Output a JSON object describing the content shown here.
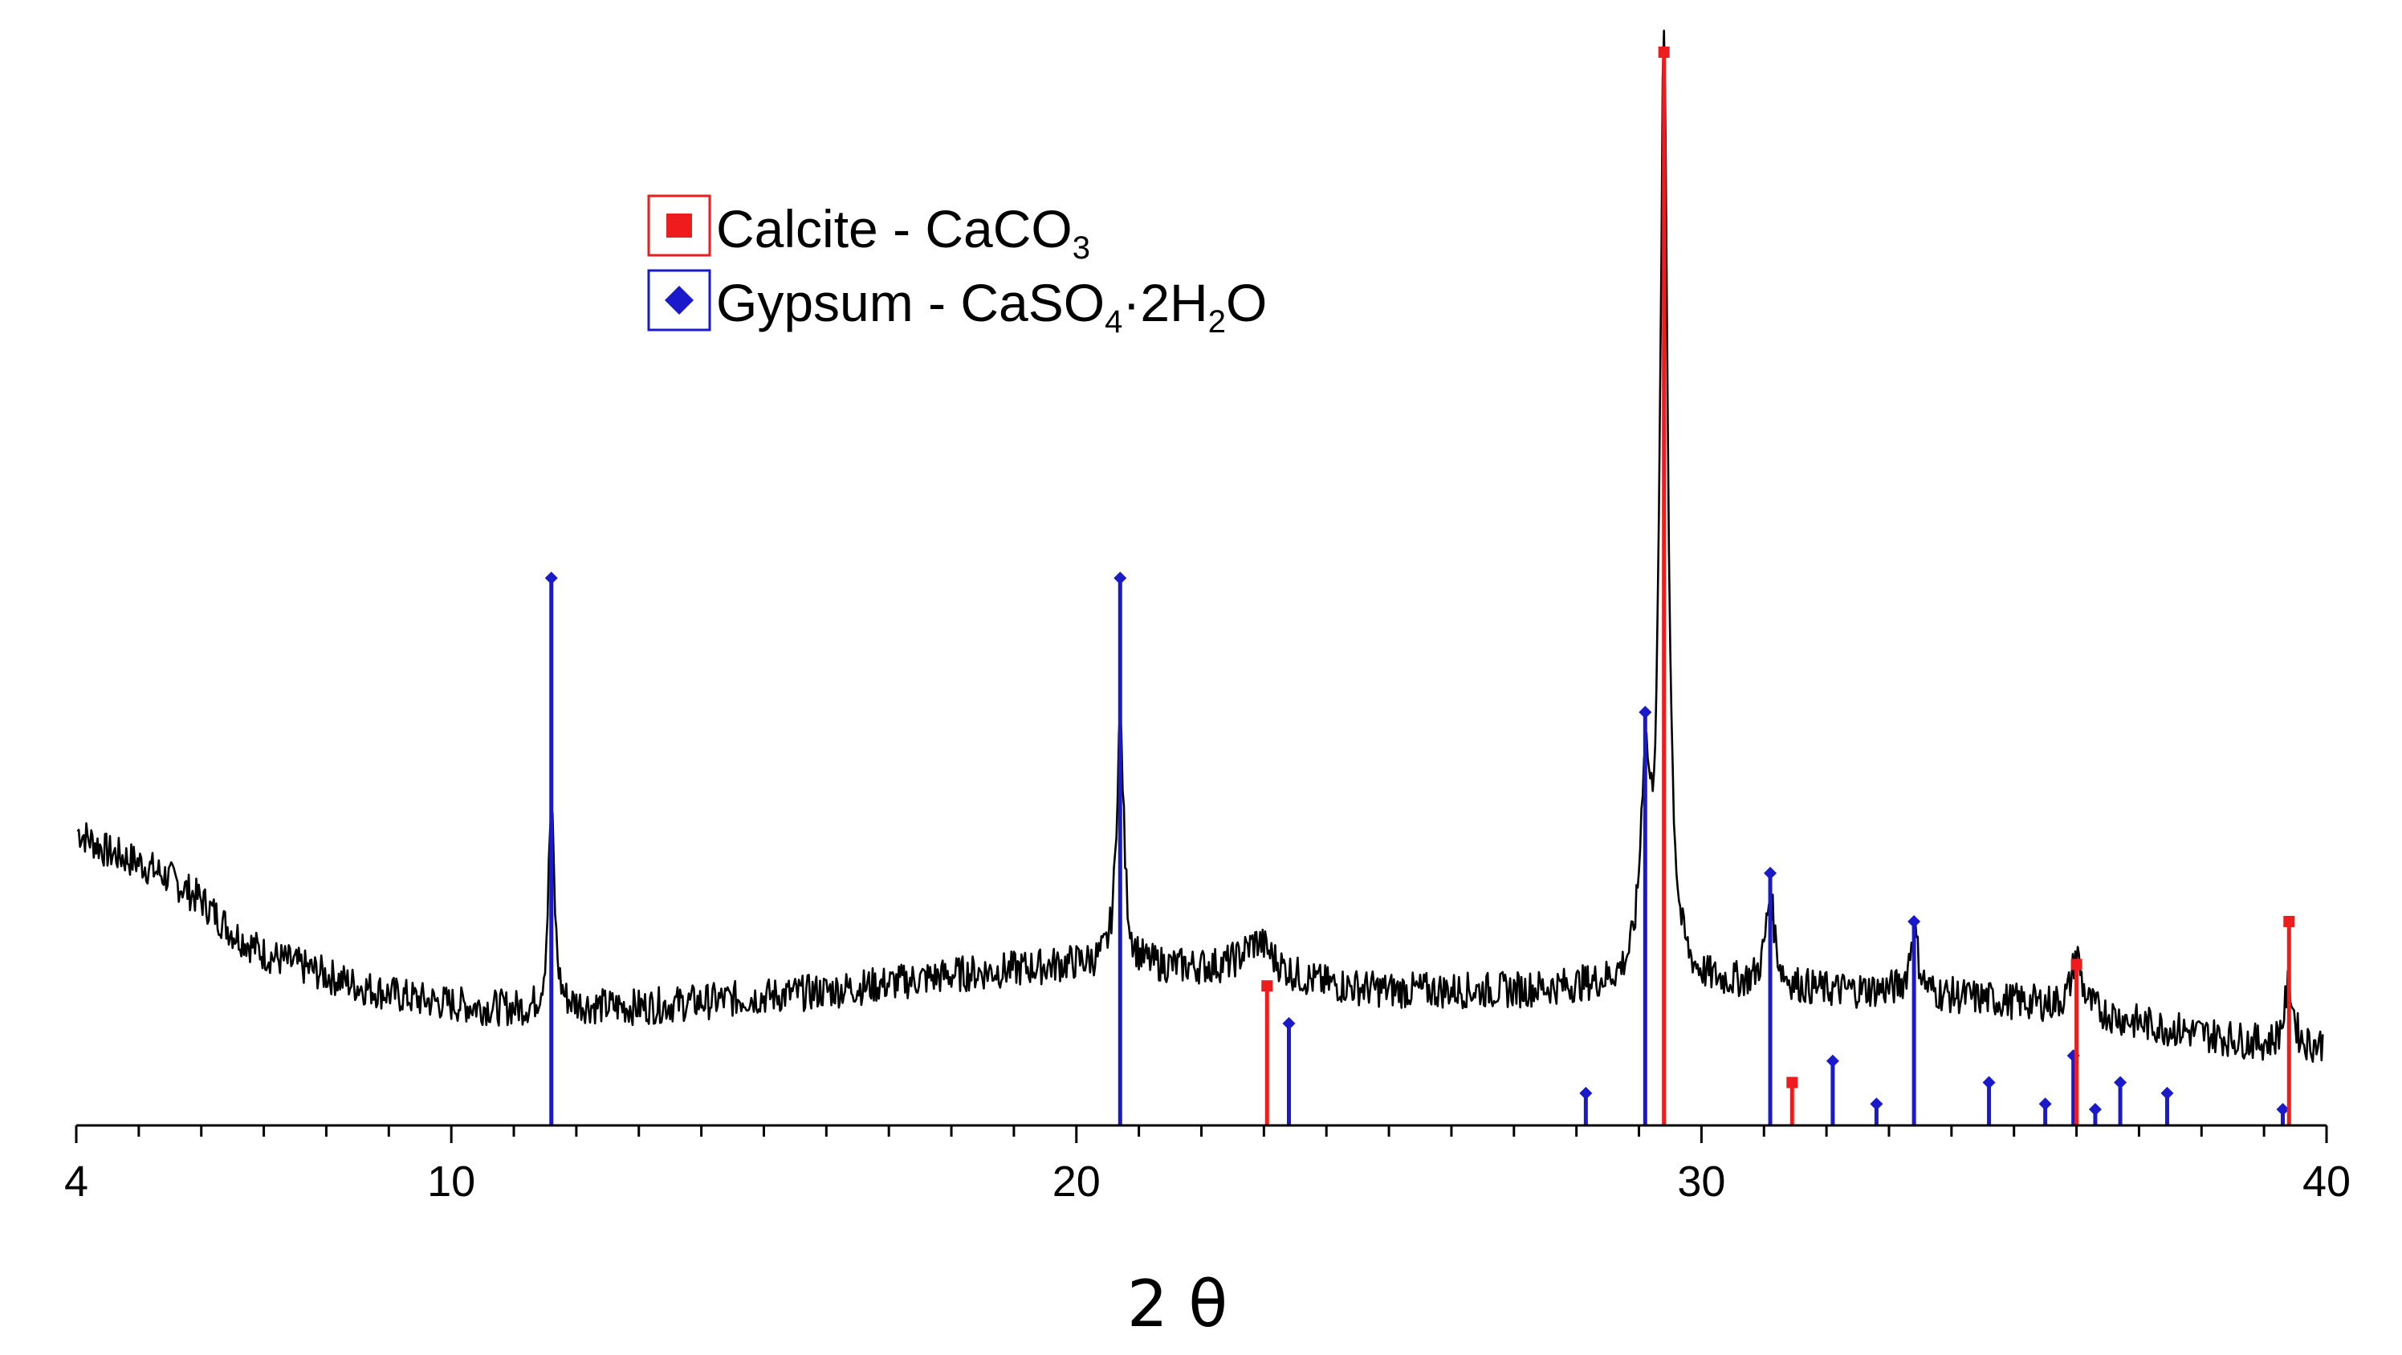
{
  "chart_data": {
    "type": "line",
    "title": "",
    "xlabel": "2 θ",
    "ylabel": "",
    "xlim": [
      4,
      40
    ],
    "ylim": [
      0,
      100
    ],
    "x_major_ticks": [
      4,
      10,
      20,
      30,
      40
    ],
    "x_tick_labels": [
      "4",
      "10",
      "20",
      "30",
      "40"
    ],
    "x_minor_step": 1,
    "grid": false,
    "legend_position": "top-left",
    "pattern": {
      "name": "",
      "color": "#000000",
      "baseline": [
        [
          4.0,
          27.5
        ],
        [
          4.5,
          25.5
        ],
        [
          5.0,
          24.5
        ],
        [
          5.5,
          23.0
        ],
        [
          6.0,
          21.0
        ],
        [
          6.5,
          18.0
        ],
        [
          7.0,
          16.0
        ],
        [
          7.5,
          15.0
        ],
        [
          8.0,
          14.0
        ],
        [
          8.5,
          13.0
        ],
        [
          9.0,
          12.3
        ],
        [
          9.5,
          11.7
        ],
        [
          10.0,
          11.3
        ],
        [
          10.5,
          11.0
        ],
        [
          11.0,
          10.8
        ],
        [
          11.5,
          10.5
        ],
        [
          12.0,
          11.0
        ],
        [
          13.0,
          11.0
        ],
        [
          14.0,
          11.5
        ],
        [
          15.0,
          12.0
        ],
        [
          16.0,
          12.5
        ],
        [
          17.0,
          13.2
        ],
        [
          18.0,
          14.0
        ],
        [
          19.0,
          14.5
        ],
        [
          20.0,
          15.0
        ],
        [
          21.0,
          14.8
        ],
        [
          22.0,
          14.5
        ],
        [
          23.0,
          14.0
        ],
        [
          24.0,
          13.0
        ],
        [
          25.0,
          12.5
        ],
        [
          26.0,
          12.5
        ],
        [
          27.0,
          12.5
        ],
        [
          28.0,
          12.8
        ],
        [
          29.0,
          13.0
        ],
        [
          30.0,
          13.0
        ],
        [
          31.0,
          13.0
        ],
        [
          32.0,
          12.5
        ],
        [
          33.0,
          12.5
        ],
        [
          34.0,
          12.0
        ],
        [
          35.0,
          11.5
        ],
        [
          36.0,
          11.0
        ],
        [
          37.0,
          9.5
        ],
        [
          38.0,
          8.5
        ],
        [
          39.0,
          7.5
        ],
        [
          39.5,
          7.0
        ],
        [
          40.0,
          7.5
        ]
      ],
      "peaks": [
        [
          11.6,
          19,
          0.06
        ],
        [
          20.7,
          23,
          0.07
        ],
        [
          22.9,
          3,
          0.3
        ],
        [
          29.1,
          18,
          0.09
        ],
        [
          29.4,
          87,
          0.075
        ],
        [
          31.1,
          8,
          0.09
        ],
        [
          33.4,
          6,
          0.08
        ],
        [
          36.0,
          5,
          0.09
        ],
        [
          39.4,
          6,
          0.09
        ]
      ]
    },
    "series": [
      {
        "name": "Calcite - CaCO3",
        "color": "#ee1c1c",
        "marker": "square",
        "x": [
          23.05,
          29.4,
          31.45,
          36.0,
          39.4
        ],
        "y": [
          13,
          100,
          4,
          15,
          19
        ]
      },
      {
        "name": "Gypsum - CaSO4·2H2O",
        "color": "#1a1acc",
        "marker": "diamond",
        "x": [
          11.6,
          20.7,
          23.4,
          28.15,
          29.1,
          31.1,
          32.1,
          32.8,
          33.4,
          34.6,
          35.5,
          35.95,
          36.3,
          36.7,
          37.45,
          39.3
        ],
        "y": [
          51,
          51,
          9.5,
          3,
          38.5,
          23.5,
          6,
          2,
          19,
          4,
          2,
          6.5,
          1.5,
          4,
          3,
          1.5
        ]
      }
    ],
    "legend": [
      {
        "text": "Calcite - CaCO",
        "subscript": "3",
        "tail": ""
      },
      {
        "text": "Gypsum - CaSO",
        "subscript": "4",
        "middle": "·2H",
        "subscript2": "2",
        "tail": "O"
      }
    ]
  }
}
